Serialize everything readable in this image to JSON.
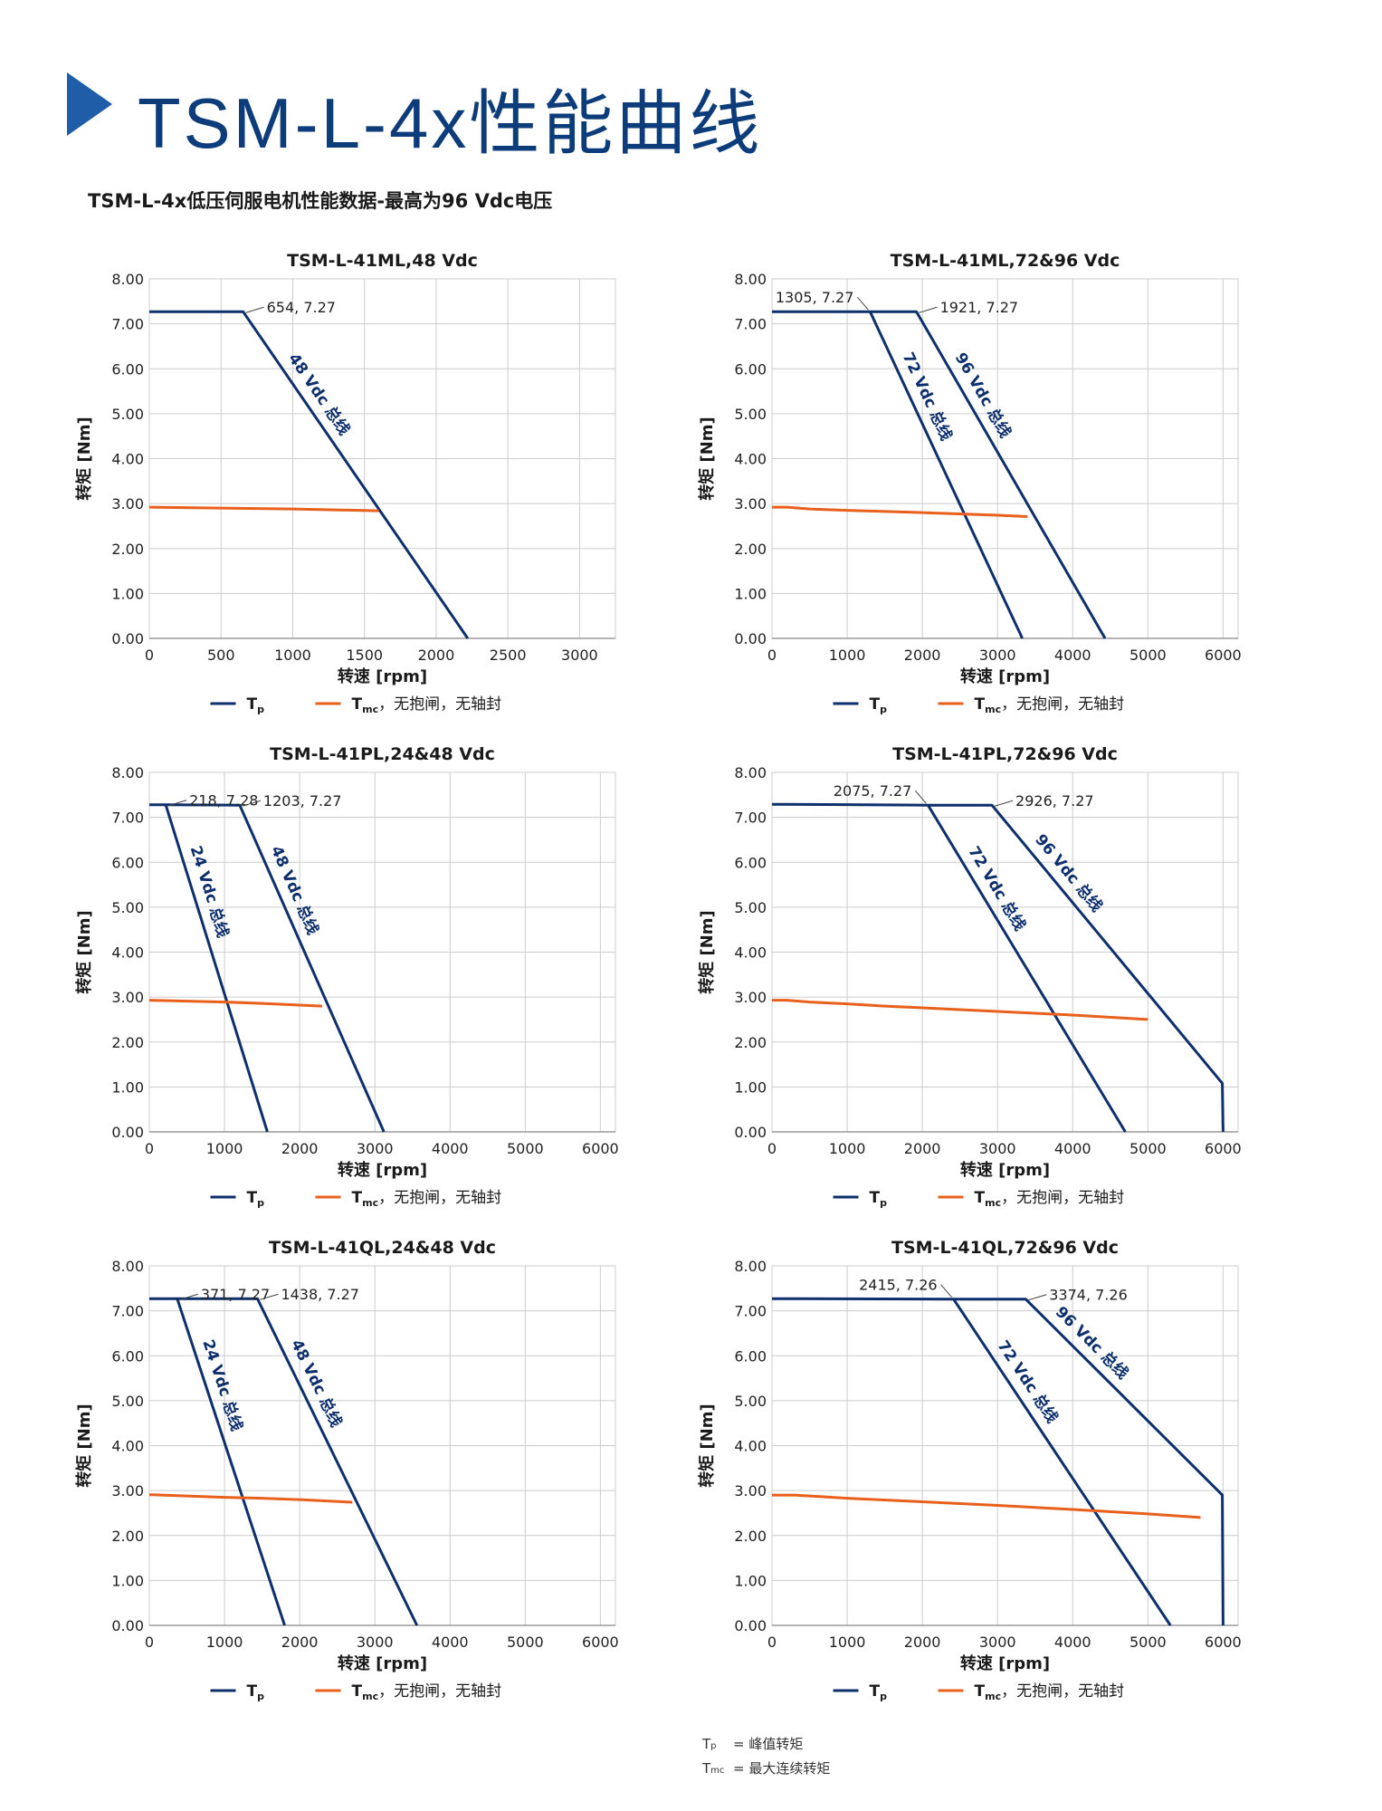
{
  "header": {
    "title": "TSM-L-4x性能曲线",
    "subtitle": "TSM-L-4x低压伺服电机性能数据-最高为96 Vdc电压"
  },
  "colors": {
    "brand": "#0d3c7a",
    "tp": "#0d2f6b",
    "tmc": "#e8601c",
    "grid": "#cccccc"
  },
  "legend_labels": {
    "tp": "T",
    "tp_sub": "p",
    "tmc": "T",
    "tmc_sub": "mc",
    "tmc_suffix": "，无抱闸，无轴封"
  },
  "chart_data": [
    {
      "type": "line",
      "title": "TSM-L-41ML,48 Vdc",
      "xlabel": "转速 [rpm]",
      "ylabel": "转矩 [Nm]",
      "xlim": [
        0,
        3250
      ],
      "ylim": [
        0,
        8
      ],
      "xticks": [
        0,
        500,
        1000,
        1500,
        2000,
        2500,
        3000
      ],
      "yticks": [
        0,
        1,
        2,
        3,
        4,
        5,
        6,
        7,
        8
      ],
      "grid": true,
      "legend": "bottom",
      "series": [
        {
          "kind": "tp",
          "label": "48 Vdc 总线",
          "points": [
            [
              0,
              7.27
            ],
            [
              654,
              7.27
            ],
            [
              2220,
              0
            ]
          ]
        },
        {
          "kind": "tmc",
          "points": [
            [
              0,
              2.92
            ],
            [
              500,
              2.9
            ],
            [
              1000,
              2.88
            ],
            [
              1600,
              2.84
            ]
          ]
        }
      ],
      "annotations": [
        {
          "text": "654, 7.27",
          "point": [
            654,
            7.27
          ]
        }
      ]
    },
    {
      "type": "line",
      "title": "TSM-L-41ML,72&96 Vdc",
      "xlabel": "转速 [rpm]",
      "ylabel": "转矩 [Nm]",
      "xlim": [
        0,
        6200
      ],
      "ylim": [
        0,
        8
      ],
      "xticks": [
        0,
        1000,
        2000,
        3000,
        4000,
        5000,
        6000
      ],
      "yticks": [
        0,
        1,
        2,
        3,
        4,
        5,
        6,
        7,
        8
      ],
      "grid": true,
      "legend": "bottom",
      "series": [
        {
          "kind": "tp",
          "label": "72 Vdc 总线",
          "points": [
            [
              0,
              7.27
            ],
            [
              1305,
              7.27
            ],
            [
              3330,
              0
            ]
          ]
        },
        {
          "kind": "tp",
          "label": "96 Vdc 总线",
          "points": [
            [
              1305,
              7.27
            ],
            [
              1921,
              7.27
            ],
            [
              4430,
              0
            ]
          ]
        },
        {
          "kind": "tmc",
          "points": [
            [
              0,
              2.92
            ],
            [
              200,
              2.92
            ],
            [
              500,
              2.88
            ],
            [
              1000,
              2.85
            ],
            [
              2000,
              2.8
            ],
            [
              3000,
              2.74
            ],
            [
              3400,
              2.71
            ]
          ]
        }
      ],
      "annotations": [
        {
          "text": "1305, 7.27",
          "point": [
            1305,
            7.27
          ],
          "side": "left"
        },
        {
          "text": "1921, 7.27",
          "point": [
            1921,
            7.27
          ]
        }
      ]
    },
    {
      "type": "line",
      "title": "TSM-L-41PL,24&48 Vdc",
      "xlabel": "转速 [rpm]",
      "ylabel": "转矩 [Nm]",
      "xlim": [
        0,
        6200
      ],
      "ylim": [
        0,
        8
      ],
      "xticks": [
        0,
        1000,
        2000,
        3000,
        4000,
        5000,
        6000
      ],
      "yticks": [
        0,
        1,
        2,
        3,
        4,
        5,
        6,
        7,
        8
      ],
      "grid": true,
      "legend": "bottom",
      "series": [
        {
          "kind": "tp",
          "label": "24 Vdc 总线",
          "points": [
            [
              0,
              7.28
            ],
            [
              218,
              7.28
            ],
            [
              1570,
              0
            ]
          ]
        },
        {
          "kind": "tp",
          "label": "48 Vdc 总线",
          "points": [
            [
              218,
              7.28
            ],
            [
              1203,
              7.27
            ],
            [
              3120,
              0
            ]
          ]
        },
        {
          "kind": "tmc",
          "points": [
            [
              0,
              2.93
            ],
            [
              500,
              2.91
            ],
            [
              1000,
              2.89
            ],
            [
              1500,
              2.86
            ],
            [
              2300,
              2.8
            ]
          ]
        }
      ],
      "annotations": [
        {
          "text": "218, 7.28",
          "point": [
            218,
            7.28
          ]
        },
        {
          "text": "1203, 7.27",
          "point": [
            1203,
            7.27
          ]
        }
      ]
    },
    {
      "type": "line",
      "title": "TSM-L-41PL,72&96 Vdc",
      "xlabel": "转速 [rpm]",
      "ylabel": "转矩 [Nm]",
      "xlim": [
        0,
        6200
      ],
      "ylim": [
        0,
        8
      ],
      "xticks": [
        0,
        1000,
        2000,
        3000,
        4000,
        5000,
        6000
      ],
      "yticks": [
        0,
        1,
        2,
        3,
        4,
        5,
        6,
        7,
        8
      ],
      "grid": true,
      "legend": "bottom",
      "series": [
        {
          "kind": "tp",
          "label": "72 Vdc 总线",
          "points": [
            [
              0,
              7.29
            ],
            [
              2075,
              7.27
            ],
            [
              4700,
              0
            ]
          ]
        },
        {
          "kind": "tp",
          "label": "96 Vdc 总线",
          "points": [
            [
              2075,
              7.27
            ],
            [
              2926,
              7.27
            ],
            [
              5990,
              1.08
            ],
            [
              6000,
              0
            ]
          ]
        },
        {
          "kind": "tmc",
          "points": [
            [
              0,
              2.93
            ],
            [
              200,
              2.93
            ],
            [
              500,
              2.89
            ],
            [
              1000,
              2.85
            ],
            [
              1500,
              2.8
            ],
            [
              2000,
              2.76
            ],
            [
              3000,
              2.68
            ],
            [
              4000,
              2.6
            ],
            [
              5000,
              2.5
            ]
          ]
        }
      ],
      "annotations": [
        {
          "text": "2075, 7.27",
          "point": [
            2075,
            7.27
          ],
          "side": "left"
        },
        {
          "text": "2926, 7.27",
          "point": [
            2926,
            7.27
          ]
        }
      ]
    },
    {
      "type": "line",
      "title": "TSM-L-41QL,24&48 Vdc",
      "xlabel": "转速 [rpm]",
      "ylabel": "转矩 [Nm]",
      "xlim": [
        0,
        6200
      ],
      "ylim": [
        0,
        8
      ],
      "xticks": [
        0,
        1000,
        2000,
        3000,
        4000,
        5000,
        6000
      ],
      "yticks": [
        0,
        1,
        2,
        3,
        4,
        5,
        6,
        7,
        8
      ],
      "grid": true,
      "legend": "bottom",
      "series": [
        {
          "kind": "tp",
          "label": "24 Vdc 总线",
          "points": [
            [
              0,
              7.27
            ],
            [
              371,
              7.27
            ],
            [
              1800,
              0
            ]
          ]
        },
        {
          "kind": "tp",
          "label": "48 Vdc 总线",
          "points": [
            [
              371,
              7.27
            ],
            [
              1438,
              7.27
            ],
            [
              3560,
              0
            ]
          ]
        },
        {
          "kind": "tmc",
          "points": [
            [
              0,
              2.91
            ],
            [
              500,
              2.88
            ],
            [
              1000,
              2.85
            ],
            [
              1500,
              2.83
            ],
            [
              2000,
              2.8
            ],
            [
              2700,
              2.74
            ]
          ]
        }
      ],
      "annotations": [
        {
          "text": "371, 7.27",
          "point": [
            371,
            7.27
          ]
        },
        {
          "text": "1438, 7.27",
          "point": [
            1438,
            7.27
          ]
        }
      ]
    },
    {
      "type": "line",
      "title": "TSM-L-41QL,72&96 Vdc",
      "xlabel": "转速 [rpm]",
      "ylabel": "转矩 [Nm]",
      "xlim": [
        0,
        6200
      ],
      "ylim": [
        0,
        8
      ],
      "xticks": [
        0,
        1000,
        2000,
        3000,
        4000,
        5000,
        6000
      ],
      "yticks": [
        0,
        1,
        2,
        3,
        4,
        5,
        6,
        7,
        8
      ],
      "grid": true,
      "legend": "bottom",
      "series": [
        {
          "kind": "tp",
          "label": "72 Vdc 总线",
          "points": [
            [
              0,
              7.27
            ],
            [
              2415,
              7.26
            ],
            [
              5300,
              0
            ]
          ]
        },
        {
          "kind": "tp",
          "label": "96 Vdc 总线",
          "points": [
            [
              2415,
              7.26
            ],
            [
              3374,
              7.26
            ],
            [
              5990,
              2.9
            ],
            [
              6000,
              0
            ]
          ]
        },
        {
          "kind": "tmc",
          "points": [
            [
              0,
              2.9
            ],
            [
              300,
              2.9
            ],
            [
              1000,
              2.83
            ],
            [
              2000,
              2.75
            ],
            [
              3000,
              2.67
            ],
            [
              4000,
              2.58
            ],
            [
              5000,
              2.48
            ],
            [
              5700,
              2.4
            ]
          ]
        }
      ],
      "annotations": [
        {
          "text": "2415, 7.26",
          "point": [
            2415,
            7.26
          ],
          "side": "left"
        },
        {
          "text": "3374, 7.26",
          "point": [
            3374,
            7.26
          ]
        }
      ]
    }
  ],
  "footnotes": [
    {
      "symbol": "T",
      "sub": "p",
      "text": "= 峰值转矩"
    },
    {
      "symbol": "T",
      "sub": "mc",
      "text": "= 最大连续转矩"
    }
  ]
}
